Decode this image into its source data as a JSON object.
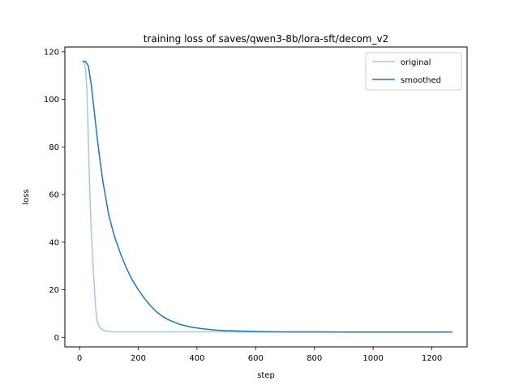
{
  "chart_data": {
    "type": "line",
    "title": "training loss of saves/qwen3-8b/lora-sft/decom_v2",
    "xlabel": "step",
    "ylabel": "loss",
    "xlim": [
      -50,
      1320
    ],
    "ylim": [
      -4,
      122
    ],
    "xticks": [
      0,
      200,
      400,
      600,
      800,
      1000,
      1200
    ],
    "yticks": [
      0,
      20,
      40,
      60,
      80,
      100,
      120
    ],
    "grid": false,
    "legend_position": "upper right",
    "series": [
      {
        "name": "original",
        "color": "#a6c8e0",
        "x": [
          10,
          15,
          20,
          25,
          30,
          35,
          40,
          45,
          50,
          55,
          60,
          65,
          70,
          75,
          80,
          90,
          100,
          110,
          120,
          130,
          140,
          150,
          200,
          300,
          400,
          500,
          600,
          700,
          800,
          900,
          1000,
          1100,
          1200,
          1270
        ],
        "y": [
          116,
          116,
          113,
          104,
          82,
          60,
          44,
          32,
          22,
          12,
          7,
          5,
          4,
          3.5,
          3,
          2.7,
          2.5,
          2.4,
          2.3,
          2.3,
          2.3,
          2.3,
          2.3,
          2.3,
          2.3,
          2.3,
          2.2,
          2.2,
          2.2,
          2.2,
          2.2,
          2.2,
          2.2,
          2.2
        ]
      },
      {
        "name": "smoothed",
        "color": "#1f77b4",
        "x": [
          10,
          20,
          30,
          40,
          50,
          60,
          70,
          80,
          90,
          100,
          120,
          140,
          160,
          180,
          200,
          220,
          240,
          260,
          280,
          300,
          340,
          380,
          420,
          460,
          500,
          560,
          620,
          700,
          800,
          900,
          1000,
          1100,
          1200,
          1270
        ],
        "y": [
          116,
          116,
          114,
          106,
          95,
          84,
          74,
          65,
          58,
          51,
          42,
          35,
          29,
          24,
          20,
          16.5,
          13.5,
          11,
          9,
          7.5,
          5.5,
          4.3,
          3.6,
          3.1,
          2.8,
          2.6,
          2.4,
          2.3,
          2.3,
          2.2,
          2.2,
          2.2,
          2.2,
          2.2
        ]
      }
    ]
  }
}
